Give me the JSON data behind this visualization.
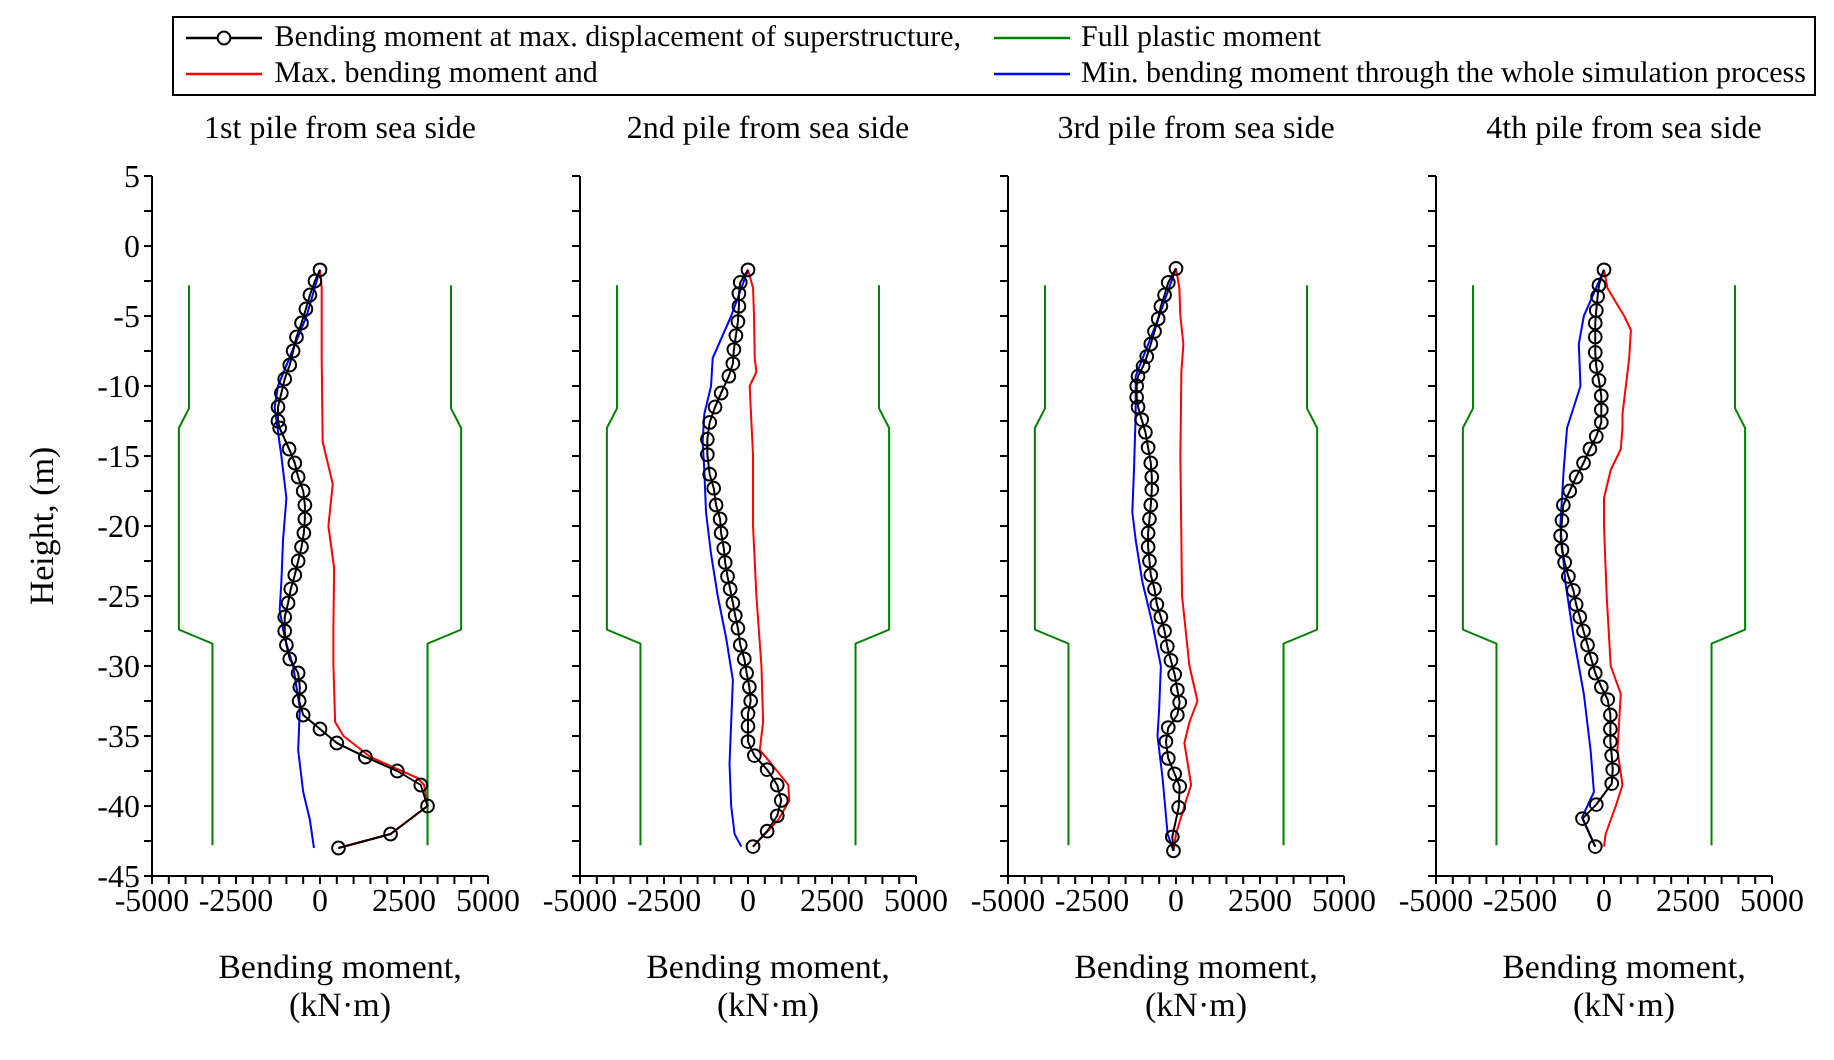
{
  "chart_data": [
    {
      "type": "line",
      "title": "1st pile from sea side",
      "xlabel": "Bending moment,\n(kN·m)",
      "ylabel": "Height, (m)",
      "legend": "top right",
      "xlim": [
        -5000,
        5000
      ],
      "ylim": [
        -45,
        5
      ],
      "xticks": [
        -5000,
        {
          "value": -4500,
          "label": null
        },
        {
          "value": -4000,
          "label": null
        },
        {
          "value": -3500,
          "label": null
        },
        {
          "value": -3000,
          "label": null
        },
        -2500,
        {
          "value": -2000,
          "label": null
        },
        {
          "value": -1500,
          "label": null
        },
        {
          "value": -1000,
          "label": null
        },
        {
          "value": -500,
          "label": null
        },
        0,
        {
          "value": 500,
          "label": null
        },
        {
          "value": 1000,
          "label": null
        },
        {
          "value": 1500,
          "label": null
        },
        {
          "value": 2000,
          "label": null
        },
        2500,
        {
          "value": 3000,
          "label": null
        },
        {
          "value": 3500,
          "label": null
        },
        {
          "value": 4000,
          "label": null
        },
        {
          "value": 4500,
          "label": null
        },
        5000
      ],
      "yticks": [
        5,
        {
          "value": 2.5,
          "label": null
        },
        0,
        {
          "value": -2.5,
          "label": null
        },
        -5,
        {
          "value": -7.5,
          "label": null
        },
        -10,
        {
          "value": -12.5,
          "label": null
        },
        -15,
        {
          "value": -17.5,
          "label": null
        },
        -20,
        {
          "value": -22.5,
          "label": null
        },
        -25,
        {
          "value": -27.5,
          "label": null
        },
        -30,
        {
          "value": -32.5,
          "label": null
        },
        -35,
        {
          "value": -37.5,
          "label": null
        },
        -40,
        {
          "value": -42.5,
          "label": null
        },
        -45
      ],
      "series": [
        {
          "name": "Bending moment at max. displacement of superstructure,",
          "color": "#000000",
          "marker": "circle",
          "x": [
            0,
            -150,
            -300,
            -420,
            -550,
            -700,
            -800,
            -900,
            -1050,
            -1150,
            -1250,
            -1250,
            -1200,
            -920,
            -750,
            -650,
            -500,
            -450,
            -450,
            -480,
            -550,
            -650,
            -750,
            -870,
            -950,
            -1050,
            -1050,
            -1000,
            -900,
            -650,
            -600,
            -620,
            -500,
            0,
            500,
            1350,
            2300,
            3000,
            3200,
            2100,
            550
          ],
          "values": [
            -1.7,
            -2.5,
            -3.5,
            -4.5,
            -5.5,
            -6.5,
            -7.5,
            -8.5,
            -9.5,
            -10.5,
            -11.5,
            -12.5,
            -13,
            -14.5,
            -15.5,
            -16.5,
            -17.5,
            -18.5,
            -19.5,
            -20.5,
            -21.5,
            -22.5,
            -23.5,
            -24.5,
            -25.5,
            -26.5,
            -27.5,
            -28.5,
            -29.5,
            -30.5,
            -31.5,
            -32.5,
            -33.5,
            -34.5,
            -35.5,
            -36.5,
            -37.5,
            -38.5,
            -40,
            -42,
            -43
          ]
        },
        {
          "name": "Full plastic moment",
          "color": "#008000",
          "x": [
            -3900,
            -3900,
            -4200,
            -4200,
            -3200,
            -3200
          ],
          "values": [
            -2.8,
            -11.6,
            -13,
            -27.4,
            -28.4,
            -42.8
          ]
        },
        {
          "name": "Max. bending moment and",
          "color": "#ff0000",
          "x": [
            0,
            50,
            50,
            80,
            380,
            250,
            420,
            400,
            400,
            450,
            700,
            1500,
            2900,
            3100,
            3200,
            2100,
            550
          ],
          "values": [
            -1.7,
            -3,
            -8,
            -14,
            -17,
            -20,
            -23,
            -27,
            -30,
            -34,
            -35,
            -36.5,
            -38,
            -38.5,
            -40,
            -42,
            -43
          ]
        },
        {
          "name": "Min. bending moment through the whole simulation process",
          "color": "#0000ff",
          "x": [
            0,
            -400,
            -1250,
            -1350,
            -1150,
            -1000,
            -1100,
            -1150,
            -1200,
            -1050,
            -800,
            -600,
            -650,
            -500,
            -300,
            -180
          ],
          "values": [
            -1.7,
            -5,
            -10,
            -11.5,
            -15,
            -18,
            -21,
            -24,
            -26,
            -28,
            -30,
            -33,
            -36,
            -39,
            -41,
            -43
          ]
        },
        {
          "color": "#008000",
          "x": [
            3900,
            3900,
            4200,
            4200,
            3200,
            3200
          ],
          "values": [
            -2.8,
            -11.6,
            -13,
            -27.4,
            -28.4,
            -42.8
          ]
        }
      ]
    },
    {
      "type": "line",
      "title": "2nd pile from sea side",
      "xlabel": "Bending moment,\n(kN·m)",
      "tick_labels": "x",
      "xlim": [
        -5000,
        5000
      ],
      "ylim": [
        -45,
        5
      ],
      "xticks": [
        -5000,
        {
          "value": -4500,
          "label": null
        },
        {
          "value": -4000,
          "label": null
        },
        {
          "value": -3500,
          "label": null
        },
        {
          "value": -3000,
          "label": null
        },
        -2500,
        {
          "value": -2000,
          "label": null
        },
        {
          "value": -1500,
          "label": null
        },
        {
          "value": -1000,
          "label": null
        },
        {
          "value": -500,
          "label": null
        },
        0,
        {
          "value": 500,
          "label": null
        },
        {
          "value": 1000,
          "label": null
        },
        {
          "value": 1500,
          "label": null
        },
        {
          "value": 2000,
          "label": null
        },
        2500,
        {
          "value": 3000,
          "label": null
        },
        {
          "value": 3500,
          "label": null
        },
        {
          "value": 4000,
          "label": null
        },
        {
          "value": 4500,
          "label": null
        },
        5000
      ],
      "yticks": [
        5,
        {
          "value": 2.5,
          "label": null
        },
        0,
        {
          "value": -2.5,
          "label": null
        },
        -5,
        {
          "value": -7.5,
          "label": null
        },
        -10,
        {
          "value": -12.5,
          "label": null
        },
        -15,
        {
          "value": -17.5,
          "label": null
        },
        -20,
        {
          "value": -22.5,
          "label": null
        },
        -25,
        {
          "value": -27.5,
          "label": null
        },
        -30,
        {
          "value": -32.5,
          "label": null
        },
        -35,
        {
          "value": -37.5,
          "label": null
        },
        -40,
        {
          "value": -42.5,
          "label": null
        },
        -45
      ],
      "series": [
        {
          "color": "#000000",
          "marker": "circle",
          "x": [
            0,
            -230,
            -270,
            -270,
            -300,
            -360,
            -420,
            -450,
            -570,
            -800,
            -980,
            -1140,
            -1210,
            -1210,
            -1140,
            -1020,
            -950,
            -830,
            -800,
            -720,
            -680,
            -610,
            -530,
            -450,
            -380,
            -300,
            -230,
            -110,
            -40,
            40,
            80,
            0,
            0,
            0,
            190,
            570,
            870,
            990,
            870,
            570,
            150
          ],
          "values": [
            -1.7,
            -2.6,
            -3.4,
            -4.3,
            -5.4,
            -6.4,
            -7.4,
            -8.4,
            -9.3,
            -10.5,
            -11.5,
            -12.6,
            -13.8,
            -14.9,
            -16.3,
            -17.3,
            -18.5,
            -19.5,
            -20.5,
            -21.6,
            -22.6,
            -23.6,
            -24.5,
            -25.5,
            -26.4,
            -27.3,
            -28.5,
            -29.5,
            -30.5,
            -31.5,
            -32.5,
            -33.4,
            -34.3,
            -35.4,
            -36.4,
            -37.4,
            -38.5,
            -39.6,
            -40.7,
            -41.8,
            -42.9
          ]
        },
        {
          "color": "#008000",
          "x": [
            -3900,
            -3900,
            -4200,
            -4200,
            -3200,
            -3200
          ],
          "values": [
            -2.8,
            -11.6,
            -13,
            -27.4,
            -28.4,
            -42.8
          ]
        },
        {
          "color": "#ff0000",
          "x": [
            0,
            150,
            180,
            200,
            250,
            50,
            150,
            150,
            250,
            400,
            450,
            350,
            700,
            1200,
            1230,
            900,
            500,
            150
          ],
          "values": [
            -1.7,
            -3,
            -5,
            -8,
            -9,
            -10,
            -15,
            -20,
            -25,
            -30,
            -34,
            -36,
            -37,
            -38.5,
            -39.6,
            -41,
            -42,
            -42.9
          ]
        },
        {
          "color": "#0000ff",
          "x": [
            0,
            -500,
            -1050,
            -1100,
            -1300,
            -1350,
            -1300,
            -1250,
            -1100,
            -900,
            -650,
            -450,
            -500,
            -550,
            -500,
            -400,
            -200
          ],
          "values": [
            -1.7,
            -5,
            -8,
            -10,
            -12,
            -14,
            -16,
            -19,
            -22,
            -25,
            -28,
            -31,
            -34,
            -37,
            -40,
            -42,
            -42.9
          ]
        },
        {
          "color": "#008000",
          "x": [
            3900,
            3900,
            4200,
            4200,
            3200,
            3200
          ],
          "values": [
            -2.8,
            -11.6,
            -13,
            -27.4,
            -28.4,
            -42.8
          ]
        }
      ]
    },
    {
      "type": "line",
      "title": "3rd pile from sea side",
      "xlabel": "Bending moment,\n(kN·m)",
      "tick_labels": "x",
      "xlim": [
        -5000,
        5000
      ],
      "ylim": [
        -45,
        5
      ],
      "xticks": [
        -5000,
        {
          "value": -4500,
          "label": null
        },
        {
          "value": -4000,
          "label": null
        },
        {
          "value": -3500,
          "label": null
        },
        {
          "value": -3000,
          "label": null
        },
        -2500,
        {
          "value": -2000,
          "label": null
        },
        {
          "value": -1500,
          "label": null
        },
        {
          "value": -1000,
          "label": null
        },
        {
          "value": -500,
          "label": null
        },
        0,
        {
          "value": 500,
          "label": null
        },
        {
          "value": 1000,
          "label": null
        },
        {
          "value": 1500,
          "label": null
        },
        {
          "value": 2000,
          "label": null
        },
        2500,
        {
          "value": 3000,
          "label": null
        },
        {
          "value": 3500,
          "label": null
        },
        {
          "value": 4000,
          "label": null
        },
        {
          "value": 4500,
          "label": null
        },
        5000
      ],
      "yticks": [
        5,
        {
          "value": 2.5,
          "label": null
        },
        0,
        {
          "value": -2.5,
          "label": null
        },
        -5,
        {
          "value": -7.5,
          "label": null
        },
        -10,
        {
          "value": -12.5,
          "label": null
        },
        -15,
        {
          "value": -17.5,
          "label": null
        },
        -20,
        {
          "value": -22.5,
          "label": null
        },
        -25,
        {
          "value": -27.5,
          "label": null
        },
        -30,
        {
          "value": -32.5,
          "label": null
        },
        -35,
        {
          "value": -37.5,
          "label": null
        },
        -40,
        {
          "value": -42.5,
          "label": null
        },
        -45
      ],
      "series": [
        {
          "color": "#000000",
          "marker": "circle",
          "x": [
            0,
            -230,
            -340,
            -450,
            -530,
            -640,
            -750,
            -870,
            -980,
            -1130,
            -1170,
            -1170,
            -1130,
            -1020,
            -910,
            -830,
            -750,
            -720,
            -720,
            -750,
            -790,
            -830,
            -830,
            -790,
            -750,
            -640,
            -570,
            -450,
            -340,
            -260,
            -150,
            -40,
            40,
            110,
            40,
            -230,
            -300,
            -230,
            -40,
            110,
            80,
            -110,
            -75
          ],
          "values": [
            -1.6,
            -2.6,
            -3.5,
            -4.3,
            -5.2,
            -6.1,
            -7,
            -7.9,
            -8.6,
            -9.3,
            -10,
            -10.8,
            -11.5,
            -12.4,
            -13.3,
            -14.4,
            -15.5,
            -16.5,
            -17.4,
            -18.5,
            -19.5,
            -20.5,
            -21.5,
            -22.5,
            -23.5,
            -24.5,
            -25.6,
            -26.5,
            -27.5,
            -28.6,
            -29.6,
            -30.6,
            -31.7,
            -32.6,
            -33.5,
            -34.4,
            -35.4,
            -36.6,
            -37.7,
            -38.6,
            -40.1,
            -42.2,
            -43.2
          ]
        },
        {
          "color": "#008000",
          "x": [
            -3900,
            -3900,
            -4200,
            -4200,
            -3200,
            -3200
          ],
          "values": [
            -2.8,
            -11.6,
            -13,
            -27.4,
            -28.4,
            -42.8
          ]
        },
        {
          "color": "#ff0000",
          "x": [
            0,
            100,
            130,
            220,
            160,
            130,
            180,
            400,
            640,
            400,
            250,
            350,
            450,
            250,
            0,
            -75
          ],
          "values": [
            -1.6,
            -3,
            -5,
            -7,
            -9,
            -15,
            -25,
            -30,
            -32.5,
            -34,
            -35.5,
            -37,
            -38.5,
            -40,
            -42,
            -43.2
          ]
        },
        {
          "color": "#0000ff",
          "x": [
            0,
            -500,
            -1200,
            -1200,
            -1250,
            -1300,
            -1200,
            -1000,
            -700,
            -450,
            -500,
            -550,
            -400,
            -250,
            -75
          ],
          "values": [
            -1.6,
            -5,
            -9.3,
            -12,
            -16,
            -19,
            -21,
            -24,
            -27,
            -30,
            -33,
            -35,
            -38,
            -42,
            -43.2
          ]
        },
        {
          "color": "#008000",
          "x": [
            3900,
            3900,
            4200,
            4200,
            3200,
            3200
          ],
          "values": [
            -2.8,
            -11.6,
            -13,
            -27.4,
            -28.4,
            -42.8
          ]
        }
      ]
    },
    {
      "type": "line",
      "title": "4th pile from sea side",
      "xlabel": "Bending moment,\n(kN·m)",
      "tick_labels": "x",
      "xlim": [
        -5000,
        5000
      ],
      "ylim": [
        -45,
        5
      ],
      "xticks": [
        -5000,
        {
          "value": -4500,
          "label": null
        },
        {
          "value": -4000,
          "label": null
        },
        {
          "value": -3500,
          "label": null
        },
        {
          "value": -3000,
          "label": null
        },
        -2500,
        {
          "value": -2000,
          "label": null
        },
        {
          "value": -1500,
          "label": null
        },
        {
          "value": -1000,
          "label": null
        },
        {
          "value": -500,
          "label": null
        },
        0,
        {
          "value": 500,
          "label": null
        },
        {
          "value": 1000,
          "label": null
        },
        {
          "value": 1500,
          "label": null
        },
        {
          "value": 2000,
          "label": null
        },
        2500,
        {
          "value": 3000,
          "label": null
        },
        {
          "value": 3500,
          "label": null
        },
        {
          "value": 4000,
          "label": null
        },
        {
          "value": 4500,
          "label": null
        },
        5000
      ],
      "yticks": [
        5,
        {
          "value": 2.5,
          "label": null
        },
        0,
        {
          "value": -2.5,
          "label": null
        },
        -5,
        {
          "value": -7.5,
          "label": null
        },
        -10,
        {
          "value": -12.5,
          "label": null
        },
        -15,
        {
          "value": -17.5,
          "label": null
        },
        -20,
        {
          "value": -22.5,
          "label": null
        },
        -25,
        {
          "value": -27.5,
          "label": null
        },
        -30,
        {
          "value": -32.5,
          "label": null
        },
        -35,
        {
          "value": -37.5,
          "label": null
        },
        -40,
        {
          "value": -42.5,
          "label": null
        },
        -45
      ],
      "series": [
        {
          "color": "#000000",
          "marker": "circle",
          "x": [
            0,
            -150,
            -190,
            -230,
            -260,
            -260,
            -260,
            -230,
            -150,
            -80,
            -80,
            -80,
            -230,
            -420,
            -610,
            -830,
            -1020,
            -1210,
            -1250,
            -1290,
            -1250,
            -1170,
            -1060,
            -910,
            -830,
            -720,
            -610,
            -490,
            -380,
            -260,
            -80,
            110,
            190,
            190,
            190,
            230,
            260,
            230,
            -230,
            -640,
            -260
          ],
          "values": [
            -1.7,
            -2.8,
            -3.6,
            -4.6,
            -5.5,
            -6.5,
            -7.6,
            -8.6,
            -9.6,
            -10.7,
            -11.7,
            -12.6,
            -13.6,
            -14.5,
            -15.5,
            -16.5,
            -17.5,
            -18.5,
            -19.6,
            -20.7,
            -21.7,
            -22.6,
            -23.6,
            -24.6,
            -25.6,
            -26.5,
            -27.5,
            -28.5,
            -29.5,
            -30.5,
            -31.5,
            -32.4,
            -33.5,
            -34.5,
            -35.4,
            -36.4,
            -37.4,
            -38.4,
            -39.9,
            -40.9,
            -42.9
          ]
        },
        {
          "color": "#008000",
          "x": [
            -3900,
            -3900,
            -4200,
            -4200,
            -3200,
            -3200
          ],
          "values": [
            -2.8,
            -11.6,
            -13,
            -27.4,
            -28.4,
            -42.8
          ]
        },
        {
          "color": "#ff0000",
          "x": [
            0,
            100,
            600,
            800,
            750,
            650,
            550,
            550,
            500,
            200,
            0,
            0,
            80,
            200,
            500,
            400,
            550,
            350,
            50,
            0
          ],
          "values": [
            -1.7,
            -3,
            -5,
            -6,
            -8,
            -10,
            -12,
            -13,
            -14.5,
            -16,
            -18,
            -20,
            -25,
            -30,
            -32,
            -36,
            -38.5,
            -40,
            -42,
            -42.9
          ]
        },
        {
          "color": "#0000ff",
          "x": [
            0,
            -600,
            -750,
            -700,
            -1100,
            -1200,
            -1300,
            -1150,
            -900,
            -600,
            -400,
            -300,
            -650,
            -260
          ],
          "values": [
            -1.7,
            -5,
            -7,
            -10,
            -13,
            -16,
            -20,
            -24,
            -28,
            -32,
            -36,
            -39,
            -40.8,
            -42.9
          ]
        },
        {
          "color": "#008000",
          "x": [
            3900,
            3900,
            4200,
            4200,
            3200,
            3200
          ],
          "values": [
            -2.8,
            -11.6,
            -13,
            -27.4,
            -28.4,
            -42.8
          ]
        }
      ]
    }
  ]
}
